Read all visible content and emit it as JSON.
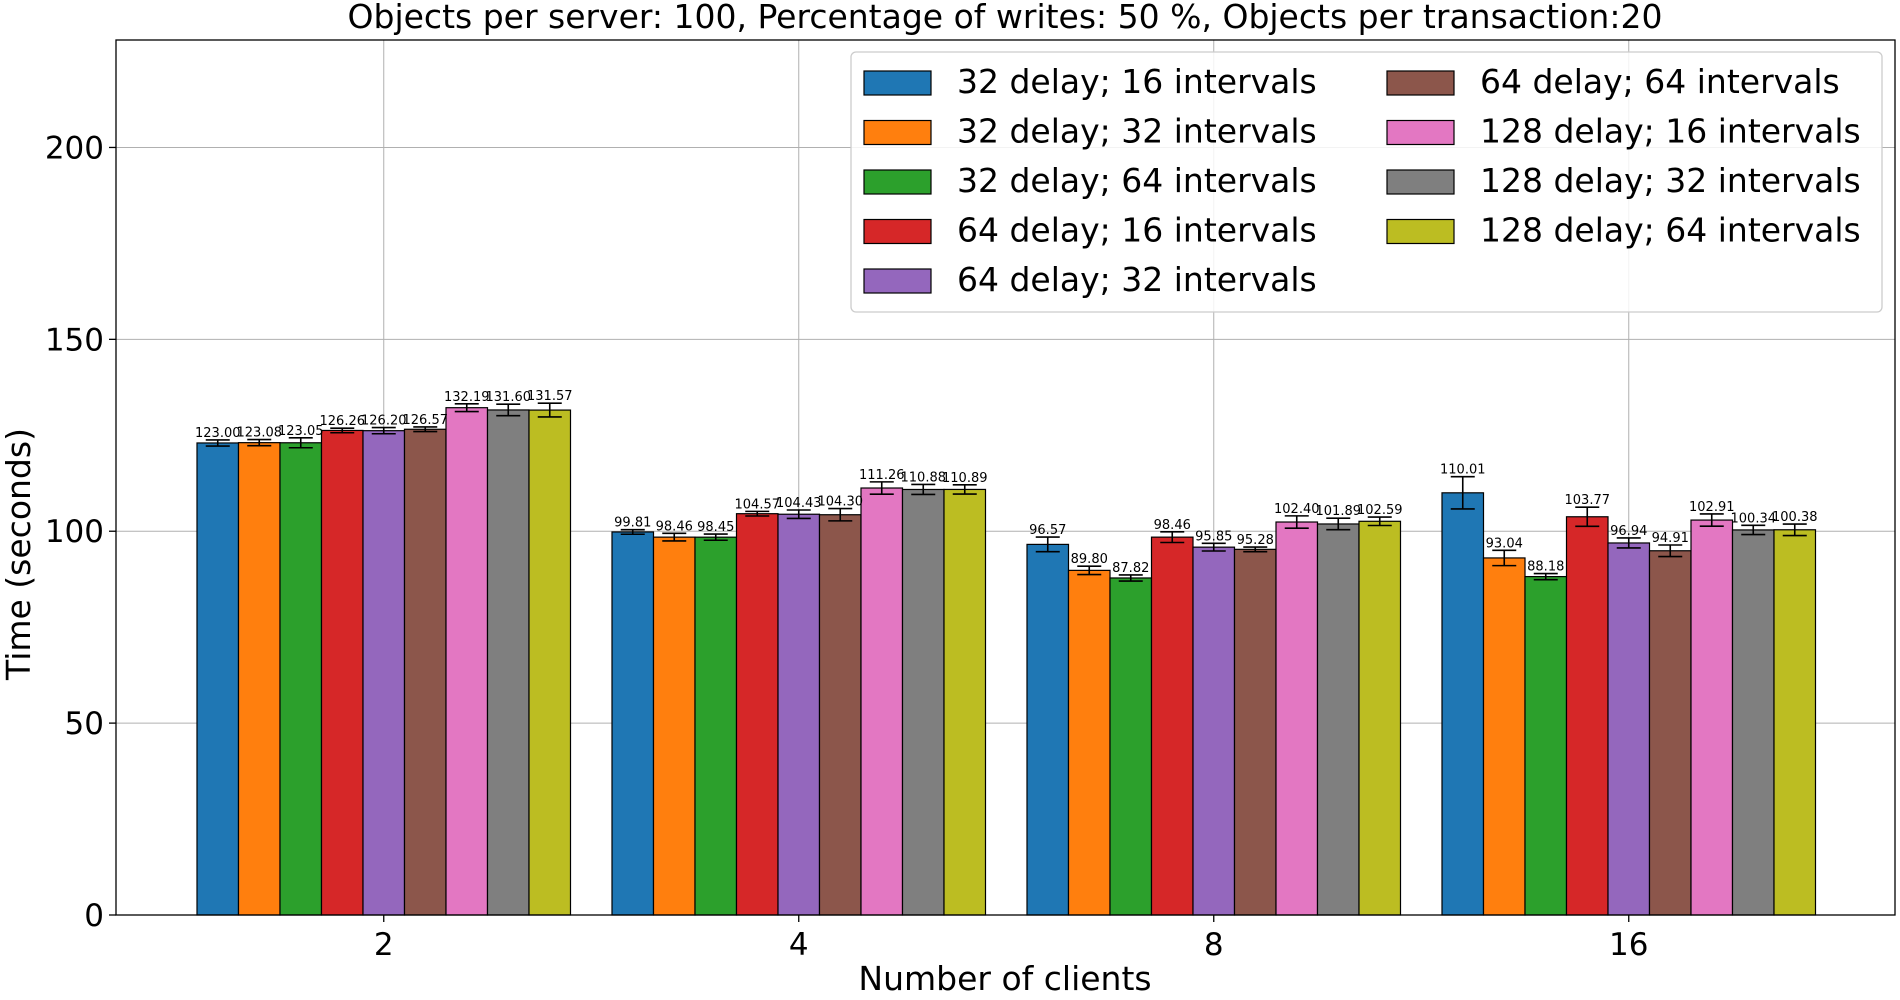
{
  "chart_data": {
    "type": "bar",
    "title": "Objects per server: 100, Percentage of writes: 50 %, Objects per transaction:20",
    "xlabel": "Number of clients",
    "ylabel": "Time (seconds)",
    "categories": [
      "2",
      "4",
      "8",
      "16"
    ],
    "ylim": [
      0,
      228
    ],
    "yticks": [
      0,
      50,
      100,
      150,
      200
    ],
    "grid": true,
    "legend_position": "top-right",
    "legend_columns": 2,
    "series": [
      {
        "name": "32 delay; 16 intervals",
        "color": "#1f77b4",
        "values": [
          123.0,
          99.81,
          96.57,
          110.01
        ],
        "labels": [
          "123.00",
          "99.81",
          "96.57",
          "110.01"
        ],
        "errors": [
          0.8,
          0.6,
          1.9,
          4.2
        ]
      },
      {
        "name": "32 delay; 32 intervals",
        "color": "#ff7f0e",
        "values": [
          123.08,
          98.46,
          89.8,
          93.04
        ],
        "labels": [
          "123.08",
          "98.46",
          "89.80",
          "93.04"
        ],
        "errors": [
          0.8,
          1.0,
          1.1,
          2.0
        ]
      },
      {
        "name": "32 delay; 64 intervals",
        "color": "#2ca02c",
        "values": [
          123.05,
          98.45,
          87.82,
          88.18
        ],
        "labels": [
          "123.05",
          "98.45",
          "87.82",
          "88.18"
        ],
        "errors": [
          1.3,
          0.8,
          0.8,
          0.8
        ]
      },
      {
        "name": "64 delay; 16 intervals",
        "color": "#d62728",
        "values": [
          126.26,
          104.57,
          98.46,
          103.77
        ],
        "labels": [
          "126.26",
          "104.57",
          "98.46",
          "103.77"
        ],
        "errors": [
          0.6,
          0.6,
          1.4,
          2.5
        ]
      },
      {
        "name": "64 delay; 32 intervals",
        "color": "#9467bd",
        "values": [
          126.2,
          104.43,
          95.85,
          96.94
        ],
        "labels": [
          "126.20",
          "104.43",
          "95.85",
          "96.94"
        ],
        "errors": [
          0.8,
          1.1,
          1.0,
          1.3
        ]
      },
      {
        "name": "64 delay; 64 intervals",
        "color": "#8c564b",
        "values": [
          126.57,
          104.3,
          95.28,
          94.91
        ],
        "labels": [
          "126.57",
          "104.30",
          "95.28",
          "94.91"
        ],
        "errors": [
          0.6,
          1.6,
          0.6,
          1.5
        ]
      },
      {
        "name": "128 delay; 16 intervals",
        "color": "#e377c2",
        "values": [
          132.19,
          111.26,
          102.4,
          102.91
        ],
        "labels": [
          "132.19",
          "111.26",
          "102.40",
          "102.91"
        ],
        "errors": [
          1.0,
          1.6,
          1.6,
          1.6
        ]
      },
      {
        "name": "128 delay; 32 intervals",
        "color": "#7f7f7f",
        "values": [
          131.6,
          110.88,
          101.89,
          100.34
        ],
        "labels": [
          "131.60",
          "110.88",
          "101.89",
          "100.34"
        ],
        "errors": [
          1.5,
          1.3,
          1.5,
          1.2
        ]
      },
      {
        "name": "128 delay; 64 intervals",
        "color": "#bcbd22",
        "values": [
          131.57,
          110.89,
          102.59,
          100.38
        ],
        "labels": [
          "131.57",
          "110.89",
          "102.59",
          "100.38"
        ],
        "errors": [
          1.8,
          1.2,
          1.1,
          1.5
        ]
      }
    ]
  }
}
